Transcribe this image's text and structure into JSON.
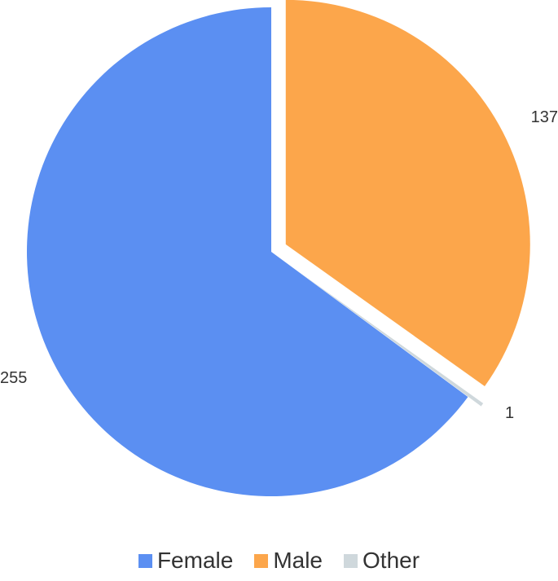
{
  "chart_data": {
    "type": "pie",
    "title": "",
    "categories": [
      "Female",
      "Male",
      "Other"
    ],
    "values": [
      255,
      137,
      1
    ],
    "colors": [
      "#5b8ff2",
      "#fca64b",
      "#cfd8dc"
    ],
    "data_labels": [
      "255",
      "137",
      "1"
    ],
    "exploded": [
      false,
      true,
      true
    ],
    "legend_position": "bottom"
  }
}
